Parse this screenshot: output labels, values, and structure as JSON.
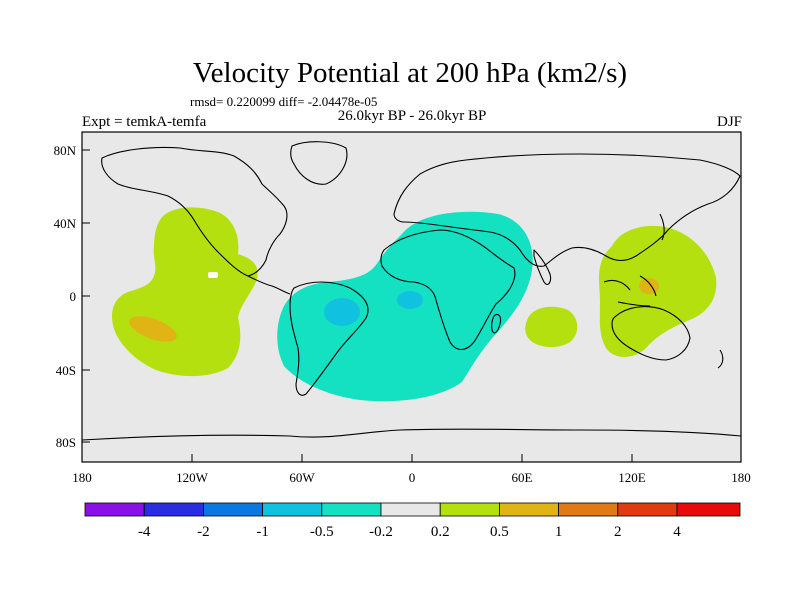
{
  "title": "Velocity Potential at 200 hPa (km2/s)",
  "stats": "rmsd= 0.220099 diff= -2.04478e-05",
  "period": "26.0kyr BP - 26.0kyr BP",
  "experiment": "Expt = temkA-temfa",
  "season": "DJF",
  "axes": {
    "lon_ticks": [
      "180",
      "120W",
      "60W",
      "0",
      "60E",
      "120E",
      "180"
    ],
    "lat_ticks": [
      "80N",
      "40N",
      "0",
      "40S",
      "80S"
    ]
  },
  "colorbar": {
    "labels": [
      "-4",
      "-2",
      "-1",
      "-0.5",
      "-0.2",
      "0.2",
      "0.5",
      "1",
      "2",
      "4"
    ],
    "colors": [
      "#8b10e8",
      "#2a2ee0",
      "#0a78e2",
      "#10c2e0",
      "#14e0c2",
      "#e8e8e8",
      "#b4e010",
      "#e0b414",
      "#e07a14",
      "#e03a10",
      "#e80a0a"
    ]
  },
  "colors": {
    "background": "#e8e8e8",
    "neg_small": "#14e0c2",
    "neg_medium": "#10c2e0",
    "pos_small": "#b4e010",
    "pos_medium": "#e0b414",
    "pos_large": "#e07a14"
  }
}
